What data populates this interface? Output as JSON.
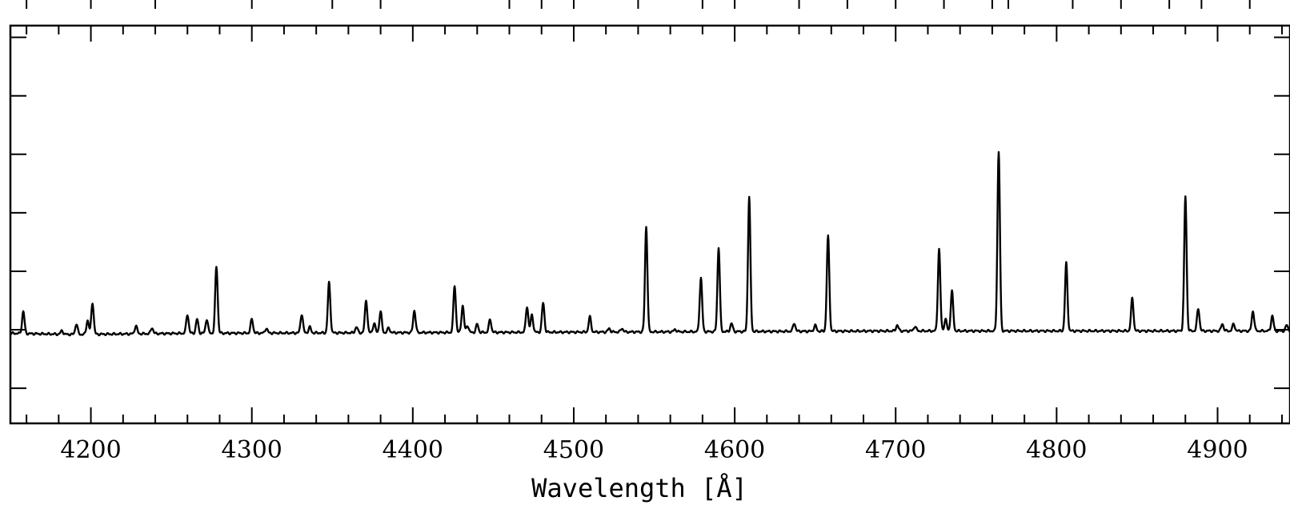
{
  "chart_data": {
    "type": "line",
    "title": "",
    "xlabel": "Wavelength [Å]",
    "ylabel": "",
    "xlim": [
      4150,
      4945
    ],
    "ylim": [
      -0.8,
      2.6
    ],
    "x_major_ticks": [
      4200,
      4300,
      4400,
      4500,
      4600,
      4700,
      4800,
      4900
    ],
    "x_tick_labels": [
      "4200",
      "4300",
      "4400",
      "4500",
      "4600",
      "4700",
      "4800",
      "4900"
    ],
    "x_minor_step": 20,
    "y_ticks": [
      -0.5,
      0,
      0.5,
      1.0,
      1.5,
      2.0,
      2.5
    ],
    "y_tick_labels_shown": false,
    "line_color": "#000000",
    "series": [
      {
        "continuum": [
          [
            4150,
            -0.03
          ],
          [
            4190,
            -0.04
          ],
          [
            4260,
            -0.03
          ],
          [
            4500,
            -0.02
          ],
          [
            4700,
            -0.01
          ],
          [
            4945,
            -0.01
          ]
        ],
        "lines": [
          [
            4158,
            0.19
          ],
          [
            4182,
            0.03
          ],
          [
            4191,
            0.09
          ],
          [
            4198,
            0.12
          ],
          [
            4201,
            0.27
          ],
          [
            4228,
            0.07
          ],
          [
            4238,
            0.05
          ],
          [
            4260,
            0.16
          ],
          [
            4266,
            0.12
          ],
          [
            4272,
            0.12
          ],
          [
            4278,
            0.57
          ],
          [
            4300,
            0.12
          ],
          [
            4309,
            0.04
          ],
          [
            4331,
            0.16
          ],
          [
            4336,
            0.05
          ],
          [
            4348,
            0.43
          ],
          [
            4365,
            0.05
          ],
          [
            4371,
            0.28
          ],
          [
            4376,
            0.08
          ],
          [
            4380,
            0.18
          ],
          [
            4385,
            0.04
          ],
          [
            4401,
            0.19
          ],
          [
            4426,
            0.4
          ],
          [
            4431,
            0.23
          ],
          [
            4434,
            0.06
          ],
          [
            4440,
            0.07
          ],
          [
            4448,
            0.11
          ],
          [
            4471,
            0.22
          ],
          [
            4474,
            0.15
          ],
          [
            4481,
            0.25
          ],
          [
            4510,
            0.13
          ],
          [
            4522,
            0.03
          ],
          [
            4530,
            0.03
          ],
          [
            4545,
            0.9
          ],
          [
            4563,
            0.02
          ],
          [
            4579,
            0.46
          ],
          [
            4590,
            0.72
          ],
          [
            4598,
            0.07
          ],
          [
            4609,
            1.15
          ],
          [
            4637,
            0.07
          ],
          [
            4650,
            0.05
          ],
          [
            4658,
            0.81
          ],
          [
            4701,
            0.05
          ],
          [
            4712,
            0.04
          ],
          [
            4727,
            0.7
          ],
          [
            4731,
            0.1
          ],
          [
            4735,
            0.34
          ],
          [
            4764,
            1.53
          ],
          [
            4806,
            0.58
          ],
          [
            4847,
            0.28
          ],
          [
            4880,
            1.15
          ],
          [
            4888,
            0.19
          ],
          [
            4903,
            0.06
          ],
          [
            4910,
            0.06
          ],
          [
            4922,
            0.17
          ],
          [
            4934,
            0.13
          ],
          [
            4943,
            0.05
          ]
        ]
      }
    ]
  }
}
